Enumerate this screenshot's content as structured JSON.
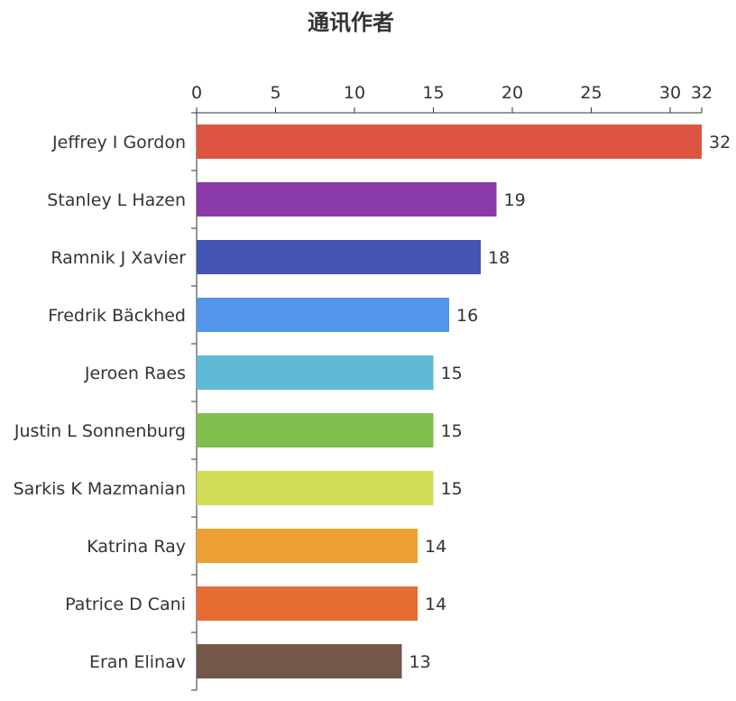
{
  "chart_data": {
    "type": "bar",
    "orientation": "horizontal",
    "title": "通讯作者",
    "xlabel": "",
    "ylabel": "",
    "x_axis_position": "top",
    "xlim": [
      0,
      32
    ],
    "x_ticks": [
      0,
      5,
      10,
      15,
      20,
      25,
      30,
      32
    ],
    "grid": false,
    "categories": [
      "Jeffrey I Gordon",
      "Stanley L Hazen",
      "Ramnik J Xavier",
      "Fredrik Bäckhed",
      "Jeroen Raes",
      "Justin L Sonnenburg",
      "Sarkis K Mazmanian",
      "Katrina Ray",
      "Patrice D Cani",
      "Eran Elinav"
    ],
    "values": [
      32,
      19,
      18,
      16,
      15,
      15,
      15,
      14,
      14,
      13
    ],
    "colors": [
      "#dd5541",
      "#8b3aaa",
      "#4455b3",
      "#5295eb",
      "#5db9d5",
      "#80be4d",
      "#d1dc56",
      "#eca033",
      "#e66c33",
      "#735748"
    ]
  }
}
